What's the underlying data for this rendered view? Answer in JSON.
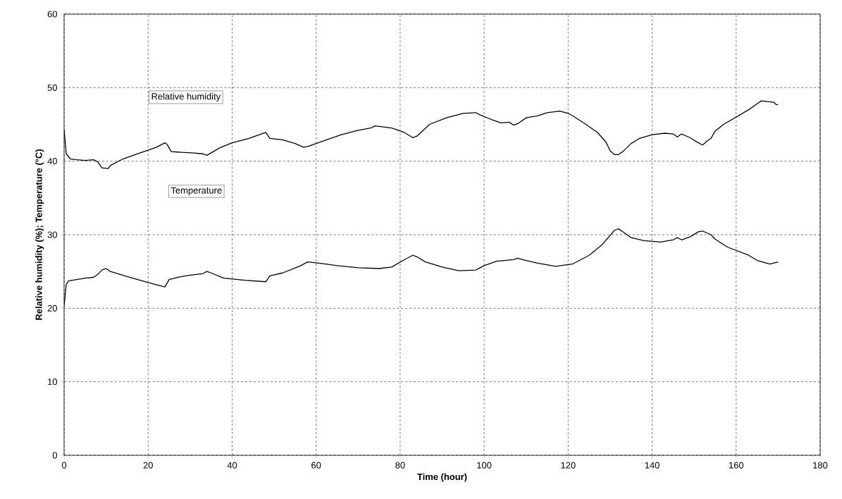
{
  "chart_data": {
    "type": "line",
    "xlabel": "Time (hour)",
    "ylabel": "Relative humidity (%); Temperature (°C)",
    "xlim": [
      0,
      180
    ],
    "xticks": [
      0,
      20,
      40,
      60,
      80,
      100,
      120,
      140,
      160,
      180
    ],
    "ylim": [
      0,
      60
    ],
    "yticks": [
      0,
      10,
      20,
      30,
      40,
      50,
      60
    ],
    "grid": true,
    "legend": false,
    "marker": "none",
    "line_style": "solid",
    "series": [
      {
        "name": "Relative humidity",
        "color": "#000000",
        "x": [
          0,
          0.5,
          1.5,
          3,
          5,
          7,
          8,
          9,
          10.5,
          11,
          14,
          18,
          22,
          24,
          24.5,
          25.5,
          28,
          31,
          33,
          34,
          37,
          40,
          44,
          48,
          49,
          52,
          55,
          57,
          58,
          62,
          66,
          70,
          73,
          74,
          78,
          81,
          83,
          84,
          87,
          91,
          95,
          98,
          99,
          102,
          104,
          106,
          107,
          108,
          110,
          113,
          115,
          118,
          120,
          121,
          124,
          127,
          129,
          130,
          131,
          132,
          133,
          135,
          137,
          140,
          143,
          145,
          146,
          147,
          149,
          151,
          152,
          153,
          154,
          155,
          157,
          160,
          163,
          165,
          166,
          169,
          169.5,
          170
        ],
        "values": [
          44.3,
          41,
          40.3,
          40.2,
          40.1,
          40.2,
          39.9,
          39.1,
          39.0,
          39.4,
          40.3,
          41.1,
          41.9,
          42.5,
          42.3,
          41.3,
          41.2,
          41.1,
          41.0,
          40.8,
          41.8,
          42.5,
          43.1,
          43.9,
          43.1,
          42.9,
          42.4,
          41.9,
          42.0,
          42.8,
          43.6,
          44.2,
          44.5,
          44.8,
          44.5,
          43.9,
          43.2,
          43.4,
          45.0,
          45.9,
          46.5,
          46.6,
          46.3,
          45.6,
          45.2,
          45.3,
          44.9,
          45.1,
          45.9,
          46.2,
          46.6,
          46.8,
          46.5,
          46.2,
          45.1,
          43.9,
          42.6,
          41.4,
          40.9,
          40.9,
          41.3,
          42.4,
          43.1,
          43.6,
          43.8,
          43.7,
          43.3,
          43.7,
          43.2,
          42.5,
          42.2,
          42.7,
          43.1,
          44.1,
          45.0,
          46.0,
          47.0,
          47.8,
          48.2,
          48.0,
          47.7,
          47.7
        ]
      },
      {
        "name": "Temperature",
        "color": "#000000",
        "x": [
          0,
          0.5,
          1,
          3,
          5,
          7,
          8,
          9,
          10,
          11,
          15,
          20,
          24,
          25,
          27,
          30,
          33,
          34,
          35,
          38,
          43,
          48,
          49,
          52,
          56,
          58,
          61,
          65,
          70,
          75,
          78,
          81,
          83,
          84,
          86,
          90,
          94,
          98,
          100,
          103,
          107,
          108,
          110,
          113,
          117,
          121,
          125,
          128,
          130,
          131,
          132,
          133,
          135,
          138,
          142,
          145,
          146,
          147,
          149,
          151,
          152,
          154,
          155,
          158,
          163,
          165,
          168,
          170
        ],
        "values": [
          20.3,
          23.2,
          23.7,
          23.9,
          24.1,
          24.2,
          24.6,
          25.2,
          25.4,
          25.0,
          24.3,
          23.5,
          22.9,
          23.9,
          24.2,
          24.5,
          24.7,
          25.0,
          24.8,
          24.1,
          23.8,
          23.6,
          24.4,
          24.8,
          25.7,
          26.3,
          26.1,
          25.8,
          25.5,
          25.4,
          25.6,
          26.6,
          27.2,
          27.0,
          26.3,
          25.6,
          25.1,
          25.2,
          25.8,
          26.4,
          26.6,
          26.8,
          26.5,
          26.1,
          25.7,
          26.0,
          27.2,
          28.6,
          29.9,
          30.6,
          30.8,
          30.4,
          29.6,
          29.2,
          29.0,
          29.3,
          29.6,
          29.3,
          29.7,
          30.4,
          30.5,
          30.0,
          29.4,
          28.3,
          27.2,
          26.5,
          26.0,
          26.3
        ]
      }
    ]
  }
}
